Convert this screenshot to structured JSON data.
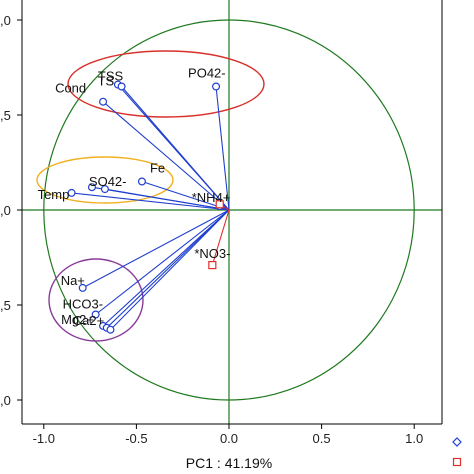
{
  "chart_data": {
    "type": "scatter",
    "xlabel": "PC1 : 41.19%",
    "ylabel": "",
    "xlim": [
      -1.1,
      1.15
    ],
    "ylim": [
      -1.15,
      1.0
    ],
    "x_ticks": [
      "-1.0",
      "-0.5",
      "0.0",
      "0.5",
      "1.0"
    ],
    "y_ticks": [
      ",0",
      ",5",
      ",0",
      ",5",
      ",0"
    ],
    "grid": false,
    "colors": {
      "variables": "#1f3fcf",
      "supplementary": "#e0302a",
      "correlation_circle": "#1f7a1f",
      "axes_lines": "#1f7a1f",
      "ellipse_red": "#d8302a",
      "ellipse_yellow": "#f0b020",
      "ellipse_purple": "#8a3a9a"
    },
    "variables": [
      {
        "name": "TSS",
        "x": -0.6,
        "y": 0.66
      },
      {
        "name": "TS",
        "x": -0.58,
        "y": 0.65
      },
      {
        "name": "Cond",
        "x": -0.68,
        "y": 0.57
      },
      {
        "name": "PO42-",
        "x": -0.07,
        "y": 0.65
      },
      {
        "name": "Fe",
        "x": -0.47,
        "y": 0.15
      },
      {
        "name": "SO42-",
        "x": -0.67,
        "y": 0.11
      },
      {
        "name": "Temp",
        "x": -0.85,
        "y": 0.09
      },
      {
        "name": "",
        "x": -0.74,
        "y": 0.12
      },
      {
        "name": "*NH4+",
        "x": -0.05,
        "y": 0.02
      },
      {
        "name": "Na+",
        "x": -0.79,
        "y": -0.41
      },
      {
        "name": "HCO3-",
        "x": -0.72,
        "y": -0.55
      },
      {
        "name": "Mg2+",
        "x": -0.68,
        "y": -0.61
      },
      {
        "name": "Ca2+",
        "x": -0.66,
        "y": -0.62
      },
      {
        "name": "",
        "x": -0.64,
        "y": -0.63
      }
    ],
    "supplementary": [
      {
        "name": "*NO3-",
        "x": -0.09,
        "y": -0.29
      },
      {
        "name": "",
        "x": -0.05,
        "y": 0.03
      }
    ]
  }
}
